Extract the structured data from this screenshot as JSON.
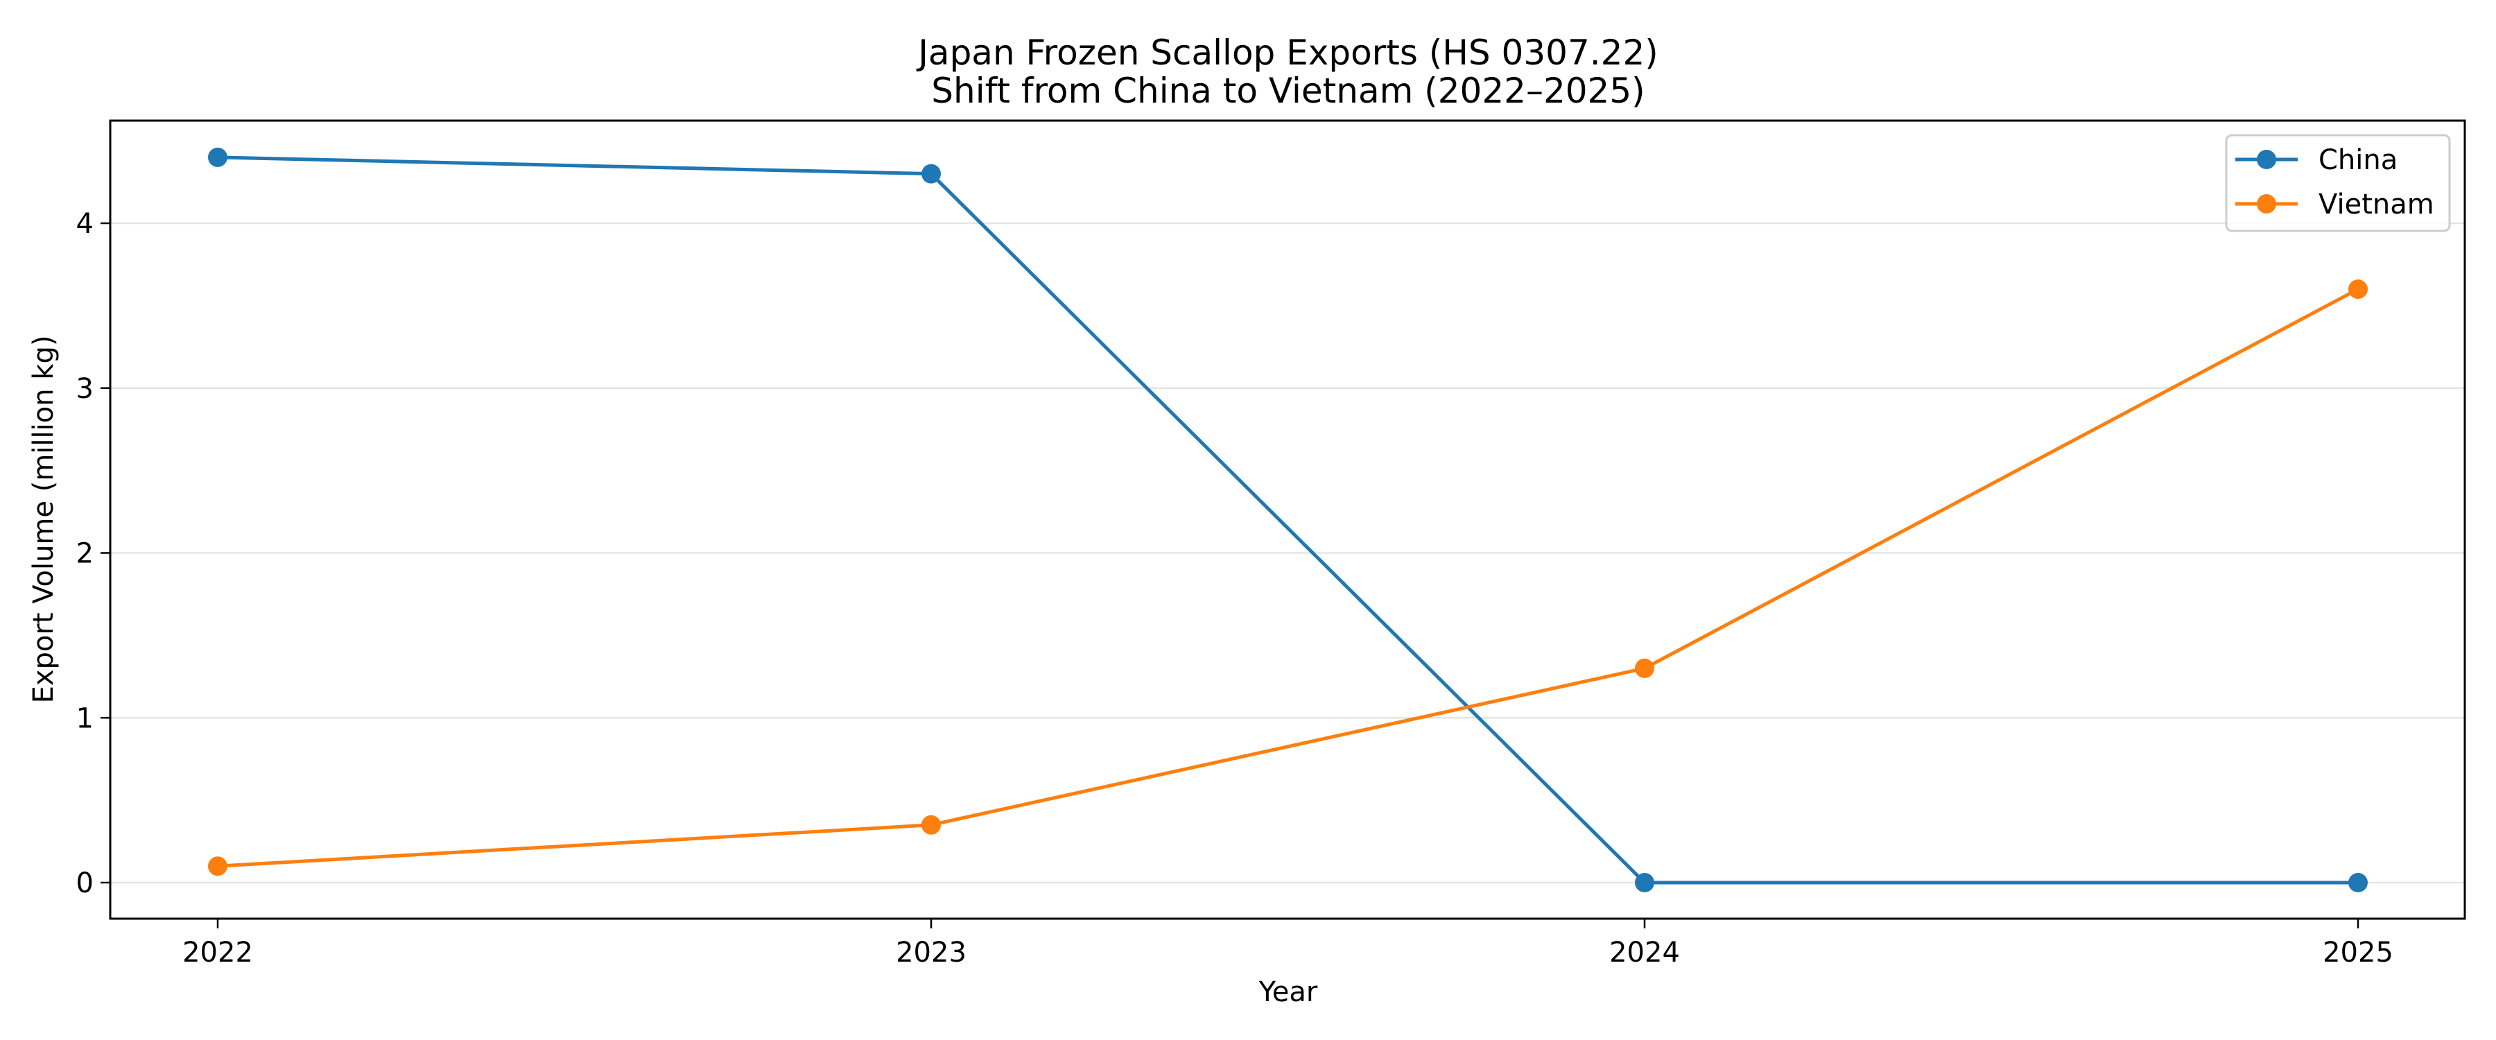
{
  "chart_data": {
    "type": "line",
    "title": "Japan Frozen Scallop Exports (HS 0307.22)\nShift from China to Vietnam (2022–2025)",
    "title_lines": [
      "Japan Frozen Scallop Exports (HS 0307.22)",
      "Shift from China to Vietnam (2022–2025)"
    ],
    "xlabel": "Year",
    "ylabel": "Export Volume (million kg)",
    "x": [
      2022,
      2023,
      2024,
      2025
    ],
    "categories": [
      "2022",
      "2023",
      "2024",
      "2025"
    ],
    "series": [
      {
        "name": "China",
        "values": [
          4.4,
          4.3,
          0.0,
          0.0
        ],
        "color": "#1f77b4",
        "marker": "circle"
      },
      {
        "name": "Vietnam",
        "values": [
          0.1,
          0.35,
          1.3,
          3.6
        ],
        "color": "#ff7f0e",
        "marker": "circle"
      }
    ],
    "yticks": [
      0,
      1,
      2,
      3,
      4
    ],
    "ylim": [
      -0.22,
      4.62
    ],
    "xlim": [
      2021.85,
      2025.15
    ],
    "grid": {
      "y": true,
      "x": false,
      "color": "#e5e5e5"
    },
    "legend": {
      "position": "upper right",
      "entries": [
        "China",
        "Vietnam"
      ]
    }
  }
}
